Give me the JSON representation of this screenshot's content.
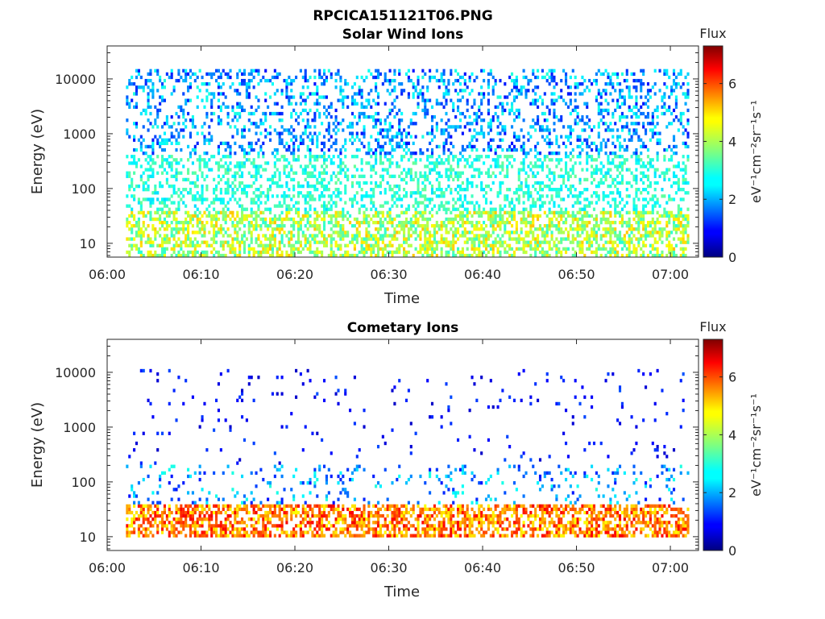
{
  "figure_title": "RPCICA151121T06.PNG",
  "chart_data": [
    {
      "type": "heatmap",
      "title": "Solar Wind Ions",
      "xlabel": "Time",
      "ylabel": "Energy (eV)",
      "x_tick_labels": [
        "06:00",
        "06:10",
        "06:20",
        "06:30",
        "06:40",
        "06:50",
        "07:00"
      ],
      "x_range": [
        "06:00",
        "07:03"
      ],
      "data_x_range": [
        "06:02",
        "07:02"
      ],
      "y_scale": "log",
      "y_range": [
        5.6,
        40000
      ],
      "y_tick_labels": [
        "10",
        "100",
        "1000",
        "10000"
      ],
      "colorbar": {
        "title": "Flux",
        "label": "eV⁻¹cm⁻²sr⁻¹s⁻¹",
        "range": [
          0,
          7.3
        ],
        "tick_labels": [
          "0",
          "2",
          "4",
          "6"
        ],
        "colormap": "jet"
      },
      "bands": [
        {
          "energy_range": [
            5,
            40
          ],
          "flux": [
            3,
            5
          ]
        },
        {
          "energy_range": [
            40,
            400
          ],
          "flux": [
            2.5,
            3.5
          ]
        },
        {
          "energy_range": [
            400,
            15000
          ],
          "flux": [
            1,
            3
          ]
        }
      ],
      "grid": false
    },
    {
      "type": "heatmap",
      "title": "Cometary Ions",
      "xlabel": "Time",
      "ylabel": "Energy (eV)",
      "x_tick_labels": [
        "06:00",
        "06:10",
        "06:20",
        "06:30",
        "06:40",
        "06:50",
        "07:00"
      ],
      "x_range": [
        "06:00",
        "07:03"
      ],
      "data_x_range": [
        "06:02",
        "07:02"
      ],
      "y_scale": "log",
      "y_range": [
        5.6,
        40000
      ],
      "y_tick_labels": [
        "10",
        "100",
        "1000",
        "10000"
      ],
      "colorbar": {
        "title": "Flux",
        "label": "eV⁻¹cm⁻²sr⁻¹s⁻¹",
        "range": [
          0,
          7.3
        ],
        "tick_labels": [
          "0",
          "2",
          "4",
          "6"
        ],
        "colormap": "jet"
      },
      "bands": [
        {
          "energy_range": [
            10,
            40
          ],
          "flux": [
            4.5,
            6.5
          ]
        },
        {
          "energy_range": [
            40,
            200
          ],
          "flux": [
            1,
            3
          ]
        },
        {
          "energy_range": [
            200,
            12000
          ],
          "flux": [
            0.5,
            1.5
          ]
        }
      ],
      "grid": false
    }
  ]
}
